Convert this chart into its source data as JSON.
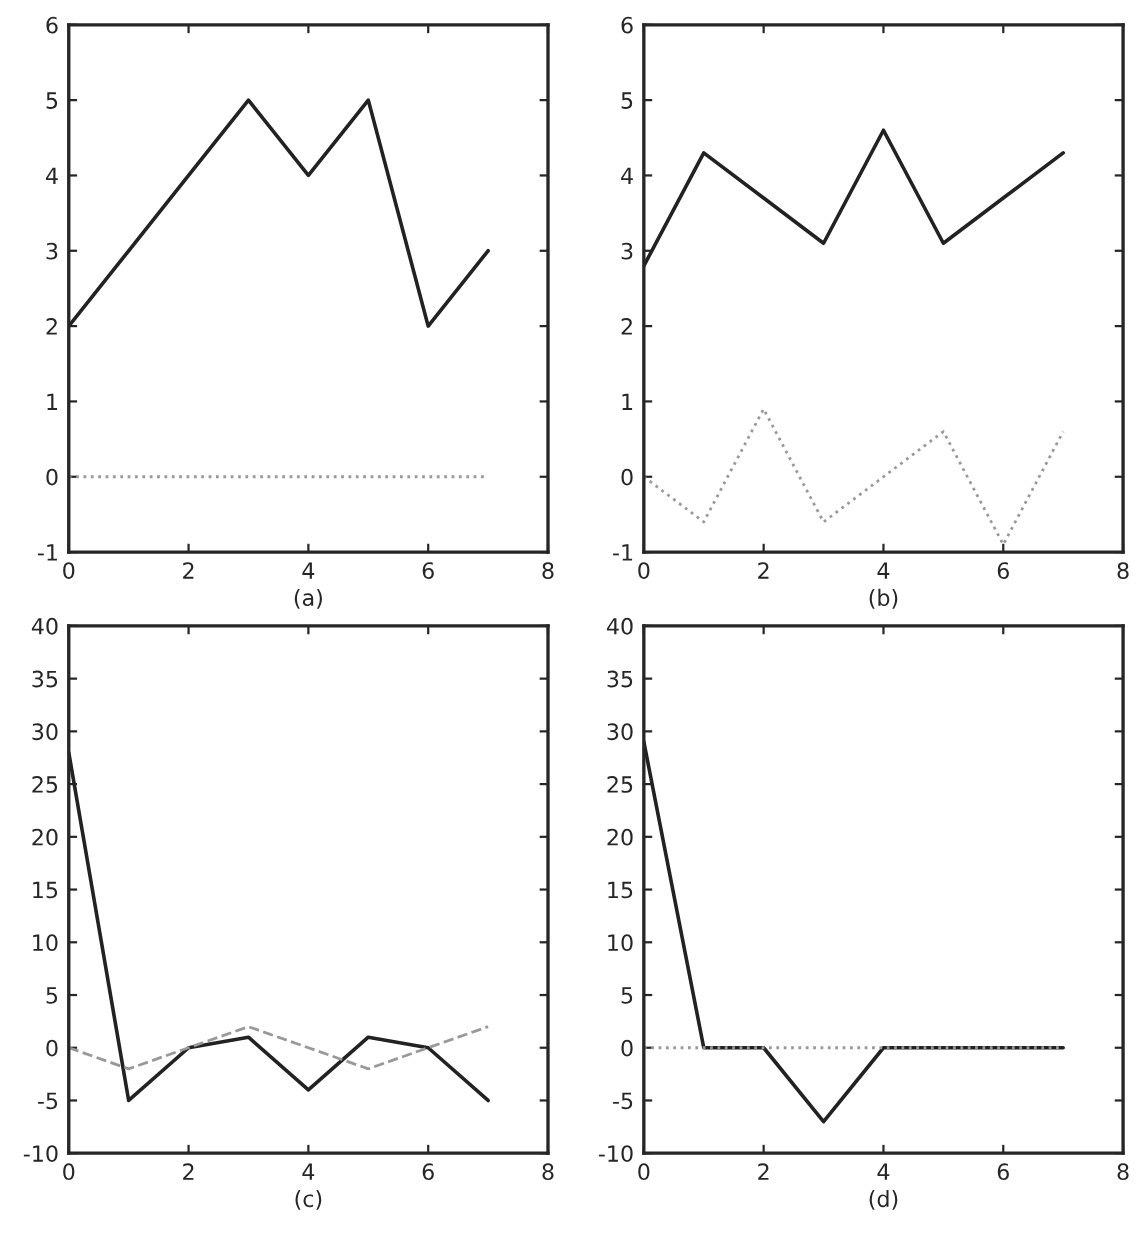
{
  "chart_data": [
    {
      "type": "line",
      "xlabel": "(a)",
      "x": [
        0,
        1,
        2,
        3,
        4,
        5,
        6,
        7
      ],
      "xlim": [
        0,
        8
      ],
      "xticks": [
        0,
        2,
        4,
        6,
        8
      ],
      "ylim": [
        -1,
        6
      ],
      "yticks": [
        -1,
        0,
        1,
        2,
        3,
        4,
        5,
        6
      ],
      "grid": false,
      "legend": false,
      "series": [
        {
          "color": "#222222",
          "line_style": "solid",
          "values": [
            2,
            3,
            4,
            5,
            4,
            5,
            2,
            3
          ]
        },
        {
          "color": "#999999",
          "line_style": "dotted",
          "values": [
            0,
            0,
            0,
            0,
            0,
            0,
            0,
            0
          ]
        }
      ]
    },
    {
      "type": "line",
      "xlabel": "(b)",
      "x": [
        0,
        1,
        2,
        3,
        4,
        5,
        6,
        7
      ],
      "xlim": [
        0,
        8
      ],
      "xticks": [
        0,
        2,
        4,
        6,
        8
      ],
      "ylim": [
        -1,
        6
      ],
      "yticks": [
        -1,
        0,
        1,
        2,
        3,
        4,
        5,
        6
      ],
      "grid": false,
      "legend": false,
      "series": [
        {
          "color": "#222222",
          "line_style": "solid",
          "values": [
            2.8,
            4.3,
            3.7,
            3.1,
            4.6,
            3.1,
            3.7,
            4.3
          ]
        },
        {
          "color": "#999999",
          "line_style": "dotted",
          "values": [
            0,
            -0.6,
            0.9,
            -0.6,
            0,
            0.6,
            -0.9,
            0.6
          ]
        }
      ]
    },
    {
      "type": "line",
      "xlabel": "(c)",
      "x": [
        0,
        1,
        2,
        3,
        4,
        5,
        6,
        7
      ],
      "xlim": [
        0,
        8
      ],
      "xticks": [
        0,
        2,
        4,
        6,
        8
      ],
      "ylim": [
        -10,
        40
      ],
      "yticks": [
        -10,
        -5,
        0,
        5,
        10,
        15,
        20,
        25,
        30,
        35,
        40
      ],
      "grid": false,
      "legend": false,
      "series": [
        {
          "color": "#222222",
          "line_style": "solid",
          "values": [
            28,
            -5,
            0,
            1,
            -4,
            1,
            0,
            -5
          ]
        },
        {
          "color": "#999999",
          "line_style": "dashed",
          "values": [
            0,
            -2,
            0,
            2,
            0,
            -2,
            0,
            2
          ]
        }
      ]
    },
    {
      "type": "line",
      "xlabel": "(d)",
      "x": [
        0,
        1,
        2,
        3,
        4,
        5,
        6,
        7
      ],
      "xlim": [
        0,
        8
      ],
      "xticks": [
        0,
        2,
        4,
        6,
        8
      ],
      "ylim": [
        -10,
        40
      ],
      "yticks": [
        -10,
        -5,
        0,
        5,
        10,
        15,
        20,
        25,
        30,
        35,
        40
      ],
      "grid": false,
      "legend": false,
      "series": [
        {
          "color": "#222222",
          "line_style": "solid",
          "values": [
            29,
            0,
            0,
            -7,
            0,
            0,
            0,
            0
          ]
        },
        {
          "color": "#999999",
          "line_style": "dotted",
          "values": [
            0,
            0,
            0,
            0,
            0,
            0,
            0,
            0
          ]
        }
      ]
    }
  ]
}
